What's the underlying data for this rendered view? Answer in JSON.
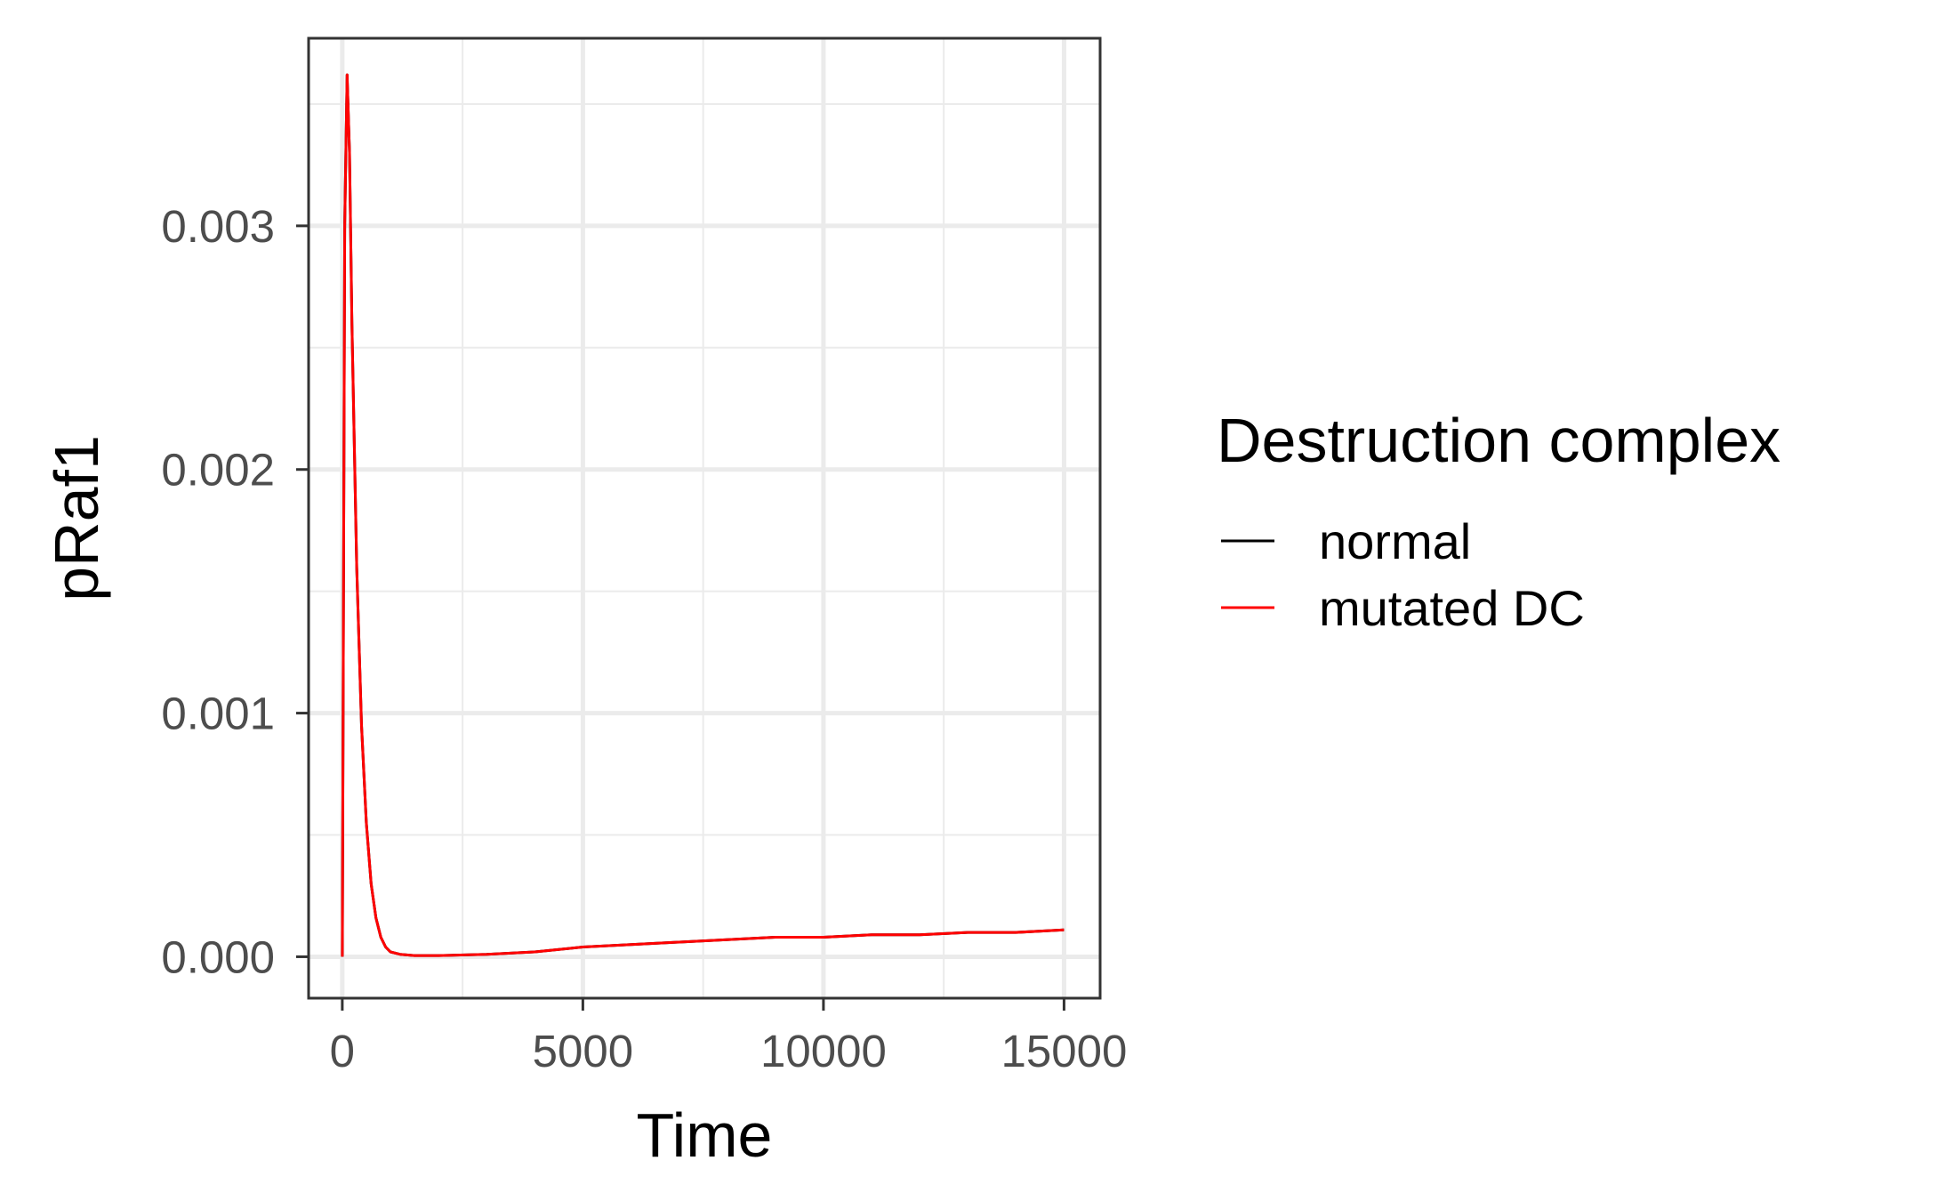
{
  "chart_data": {
    "type": "line",
    "xlabel": "Time",
    "ylabel": "pRaf1",
    "xlim": [
      -700,
      15750
    ],
    "ylim": [
      -0.00017,
      0.00377
    ],
    "x_ticks": [
      0,
      5000,
      10000,
      15000
    ],
    "x_tick_labels": [
      "0",
      "5000",
      "10000",
      "15000"
    ],
    "y_ticks": [
      0,
      0.001,
      0.002,
      0.003
    ],
    "y_tick_labels": [
      "0.000",
      "0.001",
      "0.002",
      "0.003"
    ],
    "grid": true,
    "legend": {
      "title": "Destruction complex",
      "position": "right"
    },
    "series": [
      {
        "name": "normal",
        "color": "#000000",
        "x": [
          0,
          50,
          100,
          150,
          200,
          300,
          400,
          500,
          600,
          700,
          800,
          900,
          1000,
          1200,
          1500,
          2000,
          3000,
          4000,
          5000,
          6000,
          7000,
          8000,
          9000,
          10000,
          11000,
          12000,
          13000,
          14000,
          15000
        ],
        "y": [
          0,
          0.003,
          0.00362,
          0.0033,
          0.0026,
          0.0016,
          0.00095,
          0.00055,
          0.0003,
          0.00016,
          8e-05,
          4e-05,
          2e-05,
          1e-05,
          5e-06,
          5e-06,
          1e-05,
          2e-05,
          4e-05,
          5e-05,
          6e-05,
          7e-05,
          8e-05,
          8e-05,
          9e-05,
          9e-05,
          0.0001,
          0.0001,
          0.00011
        ]
      },
      {
        "name": "mutated DC",
        "color": "#ff0000",
        "x": [
          0,
          50,
          100,
          150,
          200,
          300,
          400,
          500,
          600,
          700,
          800,
          900,
          1000,
          1200,
          1500,
          2000,
          3000,
          4000,
          5000,
          6000,
          7000,
          8000,
          9000,
          10000,
          11000,
          12000,
          13000,
          14000,
          15000
        ],
        "y": [
          0,
          0.003,
          0.00362,
          0.0033,
          0.0026,
          0.0016,
          0.00095,
          0.00055,
          0.0003,
          0.00016,
          8e-05,
          4e-05,
          2e-05,
          1e-05,
          5e-06,
          5e-06,
          1e-05,
          2e-05,
          4e-05,
          5e-05,
          6e-05,
          7e-05,
          8e-05,
          8e-05,
          9e-05,
          9e-05,
          0.0001,
          0.0001,
          0.00011
        ]
      }
    ]
  }
}
